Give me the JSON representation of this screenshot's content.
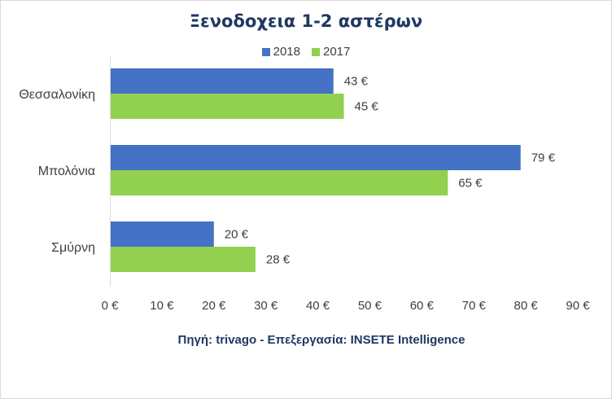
{
  "chart_data": {
    "type": "bar",
    "orientation": "horizontal",
    "title": "Ξενοδοχεια 1-2 αστέρων",
    "categories": [
      "Θεσσαλονίκη",
      "Μπολόνια",
      "Σμύρνη"
    ],
    "series": [
      {
        "name": "2018",
        "values": [
          43,
          79,
          20
        ],
        "labels": [
          "43 €",
          "79 €",
          "20 €"
        ],
        "color": "#4472c4"
      },
      {
        "name": "2017",
        "values": [
          45,
          65,
          28
        ],
        "labels": [
          "45 €",
          "65 €",
          "28 €"
        ],
        "color": "#92d050"
      }
    ],
    "xlim": [
      0,
      90
    ],
    "x_ticks": [
      0,
      10,
      20,
      30,
      40,
      50,
      60,
      70,
      80,
      90
    ],
    "x_tick_labels": [
      "0 €",
      "10 €",
      "20 €",
      "30 €",
      "40 €",
      "50 €",
      "60 €",
      "70 €",
      "80 €",
      "90 €"
    ],
    "grid": false,
    "legend_position": "top-center",
    "source": "Πηγή: trivago - Επεξεργασία: INSETE Intelligence"
  }
}
